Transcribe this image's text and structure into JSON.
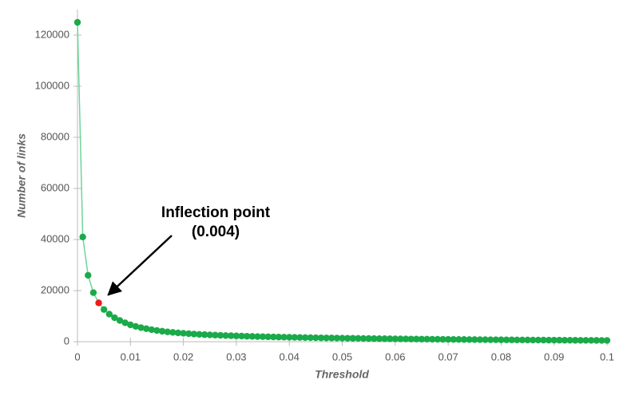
{
  "chart_data": {
    "type": "line",
    "xlabel": "Threshold",
    "ylabel": "Number of links",
    "x": [
      0,
      0.001,
      0.002,
      0.003,
      0.004,
      0.005,
      0.006,
      0.007,
      0.008,
      0.009,
      0.01,
      0.011,
      0.012,
      0.013,
      0.014,
      0.015,
      0.016,
      0.017,
      0.018,
      0.019,
      0.02,
      0.021,
      0.022,
      0.023,
      0.024,
      0.025,
      0.026,
      0.027,
      0.028,
      0.029,
      0.03,
      0.031,
      0.032,
      0.033,
      0.034,
      0.035,
      0.036,
      0.037,
      0.038,
      0.039,
      0.04,
      0.041,
      0.042,
      0.043,
      0.044,
      0.045,
      0.046,
      0.047,
      0.048,
      0.049,
      0.05,
      0.051,
      0.052,
      0.053,
      0.054,
      0.055,
      0.056,
      0.057,
      0.058,
      0.059,
      0.06,
      0.061,
      0.062,
      0.063,
      0.064,
      0.065,
      0.066,
      0.067,
      0.068,
      0.069,
      0.07,
      0.071,
      0.072,
      0.073,
      0.074,
      0.075,
      0.076,
      0.077,
      0.078,
      0.079,
      0.08,
      0.081,
      0.082,
      0.083,
      0.084,
      0.085,
      0.086,
      0.087,
      0.088,
      0.089,
      0.09,
      0.091,
      0.092,
      0.093,
      0.094,
      0.095,
      0.096,
      0.097,
      0.098,
      0.099,
      0.1
    ],
    "values": [
      125000,
      41000,
      26000,
      19200,
      15200,
      12600,
      10800,
      9400,
      8300,
      7400,
      6600,
      6000,
      5500,
      5100,
      4700,
      4400,
      4100,
      3850,
      3650,
      3450,
      3300,
      3150,
      3000,
      2880,
      2770,
      2670,
      2580,
      2490,
      2410,
      2340,
      2270,
      2200,
      2140,
      2080,
      2020,
      1970,
      1920,
      1870,
      1820,
      1780,
      1740,
      1700,
      1660,
      1620,
      1580,
      1550,
      1510,
      1480,
      1450,
      1420,
      1390,
      1360,
      1330,
      1300,
      1270,
      1250,
      1220,
      1190,
      1170,
      1140,
      1120,
      1100,
      1070,
      1050,
      1030,
      1010,
      990,
      970,
      950,
      930,
      910,
      890,
      870,
      860,
      840,
      820,
      800,
      790,
      770,
      760,
      740,
      720,
      710,
      690,
      680,
      670,
      650,
      640,
      630,
      610,
      600,
      590,
      580,
      560,
      550,
      540,
      530,
      520,
      510,
      500,
      490
    ],
    "color": "#1aaa4a",
    "line_color": "#6fd49a",
    "xlim": [
      0,
      0.1
    ],
    "xticks": [
      0,
      0.01,
      0.02,
      0.03,
      0.04,
      0.05,
      0.06,
      0.07,
      0.08,
      0.09,
      0.1
    ],
    "ylim": [
      0,
      130000
    ],
    "yticks": [
      0,
      20000,
      40000,
      60000,
      80000,
      100000,
      120000
    ],
    "grid": false,
    "annotation": {
      "lines": [
        "Inflection point",
        "(0.004)"
      ],
      "x": 0.004,
      "color": "#ee1c1c"
    }
  }
}
